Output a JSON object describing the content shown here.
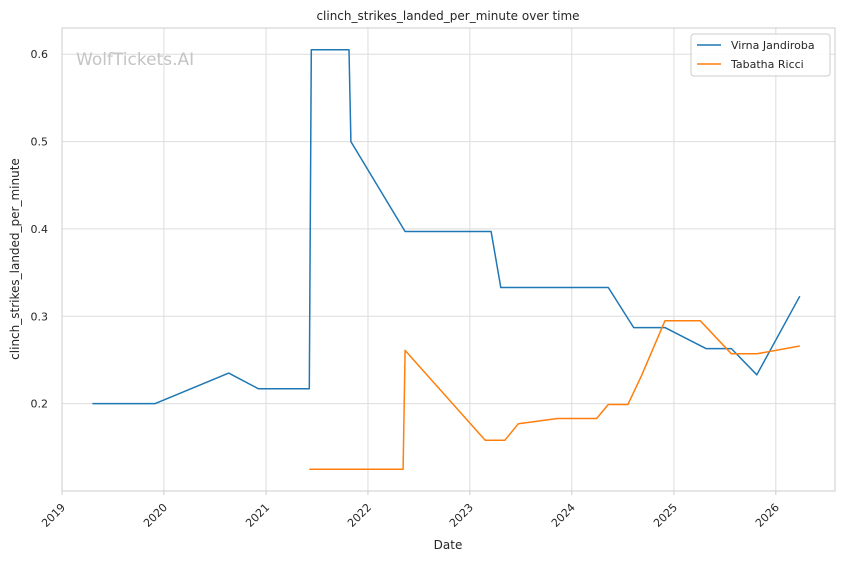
{
  "chart_data": {
    "type": "line",
    "title": "clinch_strikes_landed_per_minute over time",
    "xlabel": "Date",
    "ylabel": "clinch_strikes_landed_per_minute",
    "watermark": "WolfTickets.AI",
    "xlim": [
      "2019-01-01",
      "2026-08-01"
    ],
    "ylim": [
      0.1,
      0.63
    ],
    "x_ticks": [
      "2019",
      "2020",
      "2021",
      "2022",
      "2023",
      "2024",
      "2025",
      "2026"
    ],
    "y_ticks": [
      "0.2",
      "0.3",
      "0.4",
      "0.5",
      "0.6"
    ],
    "grid": true,
    "legend_position": "top-right",
    "series": [
      {
        "name": "Virna Jandiroba",
        "color": "#1f77b4",
        "points": [
          [
            "2019-04-20",
            0.2
          ],
          [
            "2019-12-01",
            0.2
          ],
          [
            "2020-08-20",
            0.235
          ],
          [
            "2020-12-05",
            0.217
          ],
          [
            "2021-06-05",
            0.217
          ],
          [
            "2021-06-12",
            0.605
          ],
          [
            "2021-10-25",
            0.605
          ],
          [
            "2021-11-01",
            0.5
          ],
          [
            "2022-05-14",
            0.397
          ],
          [
            "2023-03-18",
            0.397
          ],
          [
            "2023-04-22",
            0.333
          ],
          [
            "2024-05-11",
            0.333
          ],
          [
            "2024-08-10",
            0.287
          ],
          [
            "2024-11-30",
            0.287
          ],
          [
            "2025-04-26",
            0.263
          ],
          [
            "2025-07-26",
            0.263
          ],
          [
            "2025-10-25",
            0.233
          ],
          [
            "2026-03-28",
            0.323
          ]
        ]
      },
      {
        "name": "Tabatha Ricci",
        "color": "#ff7f0e",
        "points": [
          [
            "2021-06-05",
            0.125
          ],
          [
            "2022-05-07",
            0.125
          ],
          [
            "2022-05-14",
            0.261
          ],
          [
            "2023-02-25",
            0.158
          ],
          [
            "2023-05-06",
            0.158
          ],
          [
            "2023-06-24",
            0.177
          ],
          [
            "2023-11-11",
            0.183
          ],
          [
            "2024-03-30",
            0.183
          ],
          [
            "2024-05-11",
            0.199
          ],
          [
            "2024-07-20",
            0.199
          ],
          [
            "2024-09-07",
            0.232
          ],
          [
            "2024-11-30",
            0.295
          ],
          [
            "2025-04-05",
            0.295
          ],
          [
            "2025-07-26",
            0.257
          ],
          [
            "2025-10-25",
            0.257
          ],
          [
            "2026-03-28",
            0.266
          ]
        ]
      }
    ]
  }
}
